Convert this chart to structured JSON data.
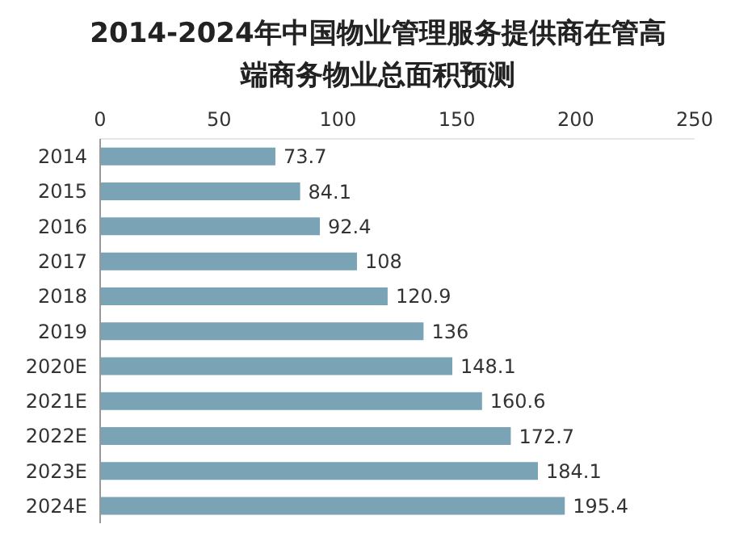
{
  "chart_data": {
    "type": "bar",
    "orientation": "horizontal",
    "title": "2014-2024年中国物业管理服务提供商在管高端商务物业总面积预测",
    "categories": [
      "2014",
      "2015",
      "2016",
      "2017",
      "2018",
      "2019",
      "2020E",
      "2021E",
      "2022E",
      "2023E",
      "2024E"
    ],
    "values": [
      73.7,
      84.1,
      92.4,
      108,
      120.9,
      136,
      148.1,
      160.6,
      172.7,
      184.1,
      195.4
    ],
    "color": "#7aa3b5",
    "xlim": [
      0,
      250
    ],
    "xticks": [
      0,
      50,
      100,
      150,
      200,
      250
    ],
    "data_labels": true,
    "grid": false
  }
}
